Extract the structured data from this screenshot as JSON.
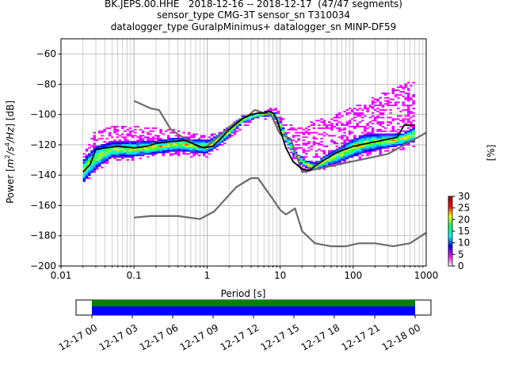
{
  "chart_data": {
    "type": "heatmap",
    "title_lines": [
      "BK.JEPS.00.HHE   2018-12-16 -- 2018-12-17  (47/47 segments)",
      "sensor_type CMG-3T sensor_sn T310034",
      "datalogger_type GuralpMinimus+ datalogger_sn MINP-DF59"
    ],
    "xlabel": "Period [s]",
    "ylabel_parts": [
      "Power [",
      "m",
      "2",
      "/",
      "s",
      "4",
      "/Hz",
      "] [dB]"
    ],
    "x_scale": "log",
    "xlim": [
      0.01,
      1000
    ],
    "ylim": [
      -200,
      -50
    ],
    "x_ticks": [
      {
        "value": 0.01,
        "label": "0.01"
      },
      {
        "value": 0.1,
        "label": "0.1"
      },
      {
        "value": 1,
        "label": "1"
      },
      {
        "value": 10,
        "label": "10"
      },
      {
        "value": 100,
        "label": "100"
      },
      {
        "value": 1000,
        "label": "1000"
      }
    ],
    "y_ticks": [
      -200,
      -180,
      -160,
      -140,
      -120,
      -100,
      -80,
      -60
    ],
    "grid": true,
    "colorbar": {
      "label": "[%]",
      "range": [
        0,
        30
      ],
      "ticks": [
        0,
        5,
        10,
        15,
        20,
        25,
        30
      ],
      "colormap_stops": [
        "#ffffff",
        "#ff00ff",
        "#0000ff",
        "#00ffff",
        "#00ff66",
        "#ffff00",
        "#ff0000",
        "#990000"
      ]
    },
    "series": [
      {
        "role": "noise_model_high",
        "color": "#6b6b6b",
        "x": [
          0.1,
          0.17,
          0.22,
          0.32,
          0.4,
          0.8,
          1,
          2.3,
          3.8,
          4.5,
          6,
          7.5,
          10,
          14,
          20,
          300,
          1000
        ],
        "y": [
          -91,
          -96,
          -97,
          -110,
          -113,
          -122,
          -121,
          -106,
          -100,
          -97,
          -99,
          -100,
          -113,
          -116,
          -138,
          -126,
          -112
        ]
      },
      {
        "role": "noise_model_low",
        "color": "#6b6b6b",
        "x": [
          0.1,
          0.17,
          0.4,
          0.8,
          1.25,
          2.5,
          4,
          5,
          6.5,
          8,
          10,
          12,
          16,
          20,
          30,
          50,
          80,
          120,
          200,
          350,
          600,
          1000
        ],
        "y": [
          -168,
          -167,
          -167,
          -169,
          -164,
          -148,
          -142,
          -142,
          -150,
          -156,
          -163,
          -166,
          -162,
          -177,
          -185,
          -187,
          -187,
          -185,
          -185,
          -187,
          -185,
          -178
        ]
      },
      {
        "role": "mode",
        "color": "#000000",
        "x": [
          0.02,
          0.025,
          0.03,
          0.04,
          0.06,
          0.1,
          0.15,
          0.2,
          0.3,
          0.5,
          0.7,
          0.9,
          1.2,
          1.6,
          2,
          3,
          4,
          5,
          6,
          7,
          8,
          9,
          10,
          12,
          15,
          20,
          25,
          30,
          40,
          60,
          100,
          200,
          400,
          500,
          700
        ],
        "y": [
          -138,
          -133,
          -123,
          -122,
          -121,
          -122,
          -121,
          -119,
          -118,
          -117,
          -120,
          -122,
          -121,
          -115,
          -110,
          -103,
          -100,
          -99,
          -99,
          -98,
          -99,
          -103,
          -110,
          -122,
          -131,
          -136,
          -137,
          -134,
          -130,
          -125,
          -121,
          -118,
          -115,
          -107,
          -107
        ]
      }
    ],
    "density_band": {
      "core": {
        "x": [
          0.02,
          0.03,
          0.05,
          0.1,
          0.2,
          0.4,
          0.6,
          1,
          1.5,
          2,
          3,
          5,
          7,
          9,
          12,
          16,
          22,
          30,
          45,
          70,
          100,
          150,
          300,
          500,
          700
        ],
        "y_low": [
          -145,
          -136,
          -128,
          -128,
          -126,
          -124,
          -125,
          -126,
          -120,
          -115,
          -106,
          -102,
          -101,
          -104,
          -118,
          -128,
          -135,
          -137,
          -134,
          -131,
          -128,
          -125,
          -122,
          -120,
          -118
        ],
        "y_high": [
          -130,
          -121,
          -118,
          -118,
          -117,
          -115,
          -116,
          -117,
          -112,
          -108,
          -101,
          -99,
          -97,
          -99,
          -112,
          -124,
          -130,
          -132,
          -126,
          -121,
          -116,
          -113,
          -113,
          -112,
          -108
        ]
      },
      "spread": {
        "x": [
          0.02,
          0.03,
          0.05,
          0.1,
          0.2,
          0.4,
          0.6,
          1,
          1.5,
          2,
          3,
          5,
          7,
          9,
          12,
          16,
          22,
          30,
          45,
          70,
          100,
          150,
          300,
          500,
          700
        ],
        "y_low": [
          -146,
          -139,
          -131,
          -130,
          -128,
          -127,
          -128,
          -128,
          -122,
          -117,
          -109,
          -104,
          -103,
          -107,
          -121,
          -131,
          -138,
          -139,
          -136,
          -133,
          -131,
          -128,
          -125,
          -123,
          -121
        ],
        "y_high": [
          -127,
          -110,
          -108,
          -107,
          -109,
          -110,
          -112,
          -114,
          -111,
          -107,
          -101,
          -99,
          -96,
          -96,
          -104,
          -108,
          -108,
          -103,
          -101,
          -98,
          -95,
          -91,
          -84,
          -80,
          -76
        ]
      }
    },
    "coverage": {
      "time_ticks": [
        "12-17 00",
        "12-17 03",
        "12-17 06",
        "12-17 09",
        "12-17 12",
        "12-17 15",
        "12-17 18",
        "12-17 21",
        "12-18 00"
      ],
      "bars": [
        {
          "role": "data",
          "color": "#008000"
        },
        {
          "role": "psd",
          "color": "#0000ff"
        }
      ]
    }
  }
}
